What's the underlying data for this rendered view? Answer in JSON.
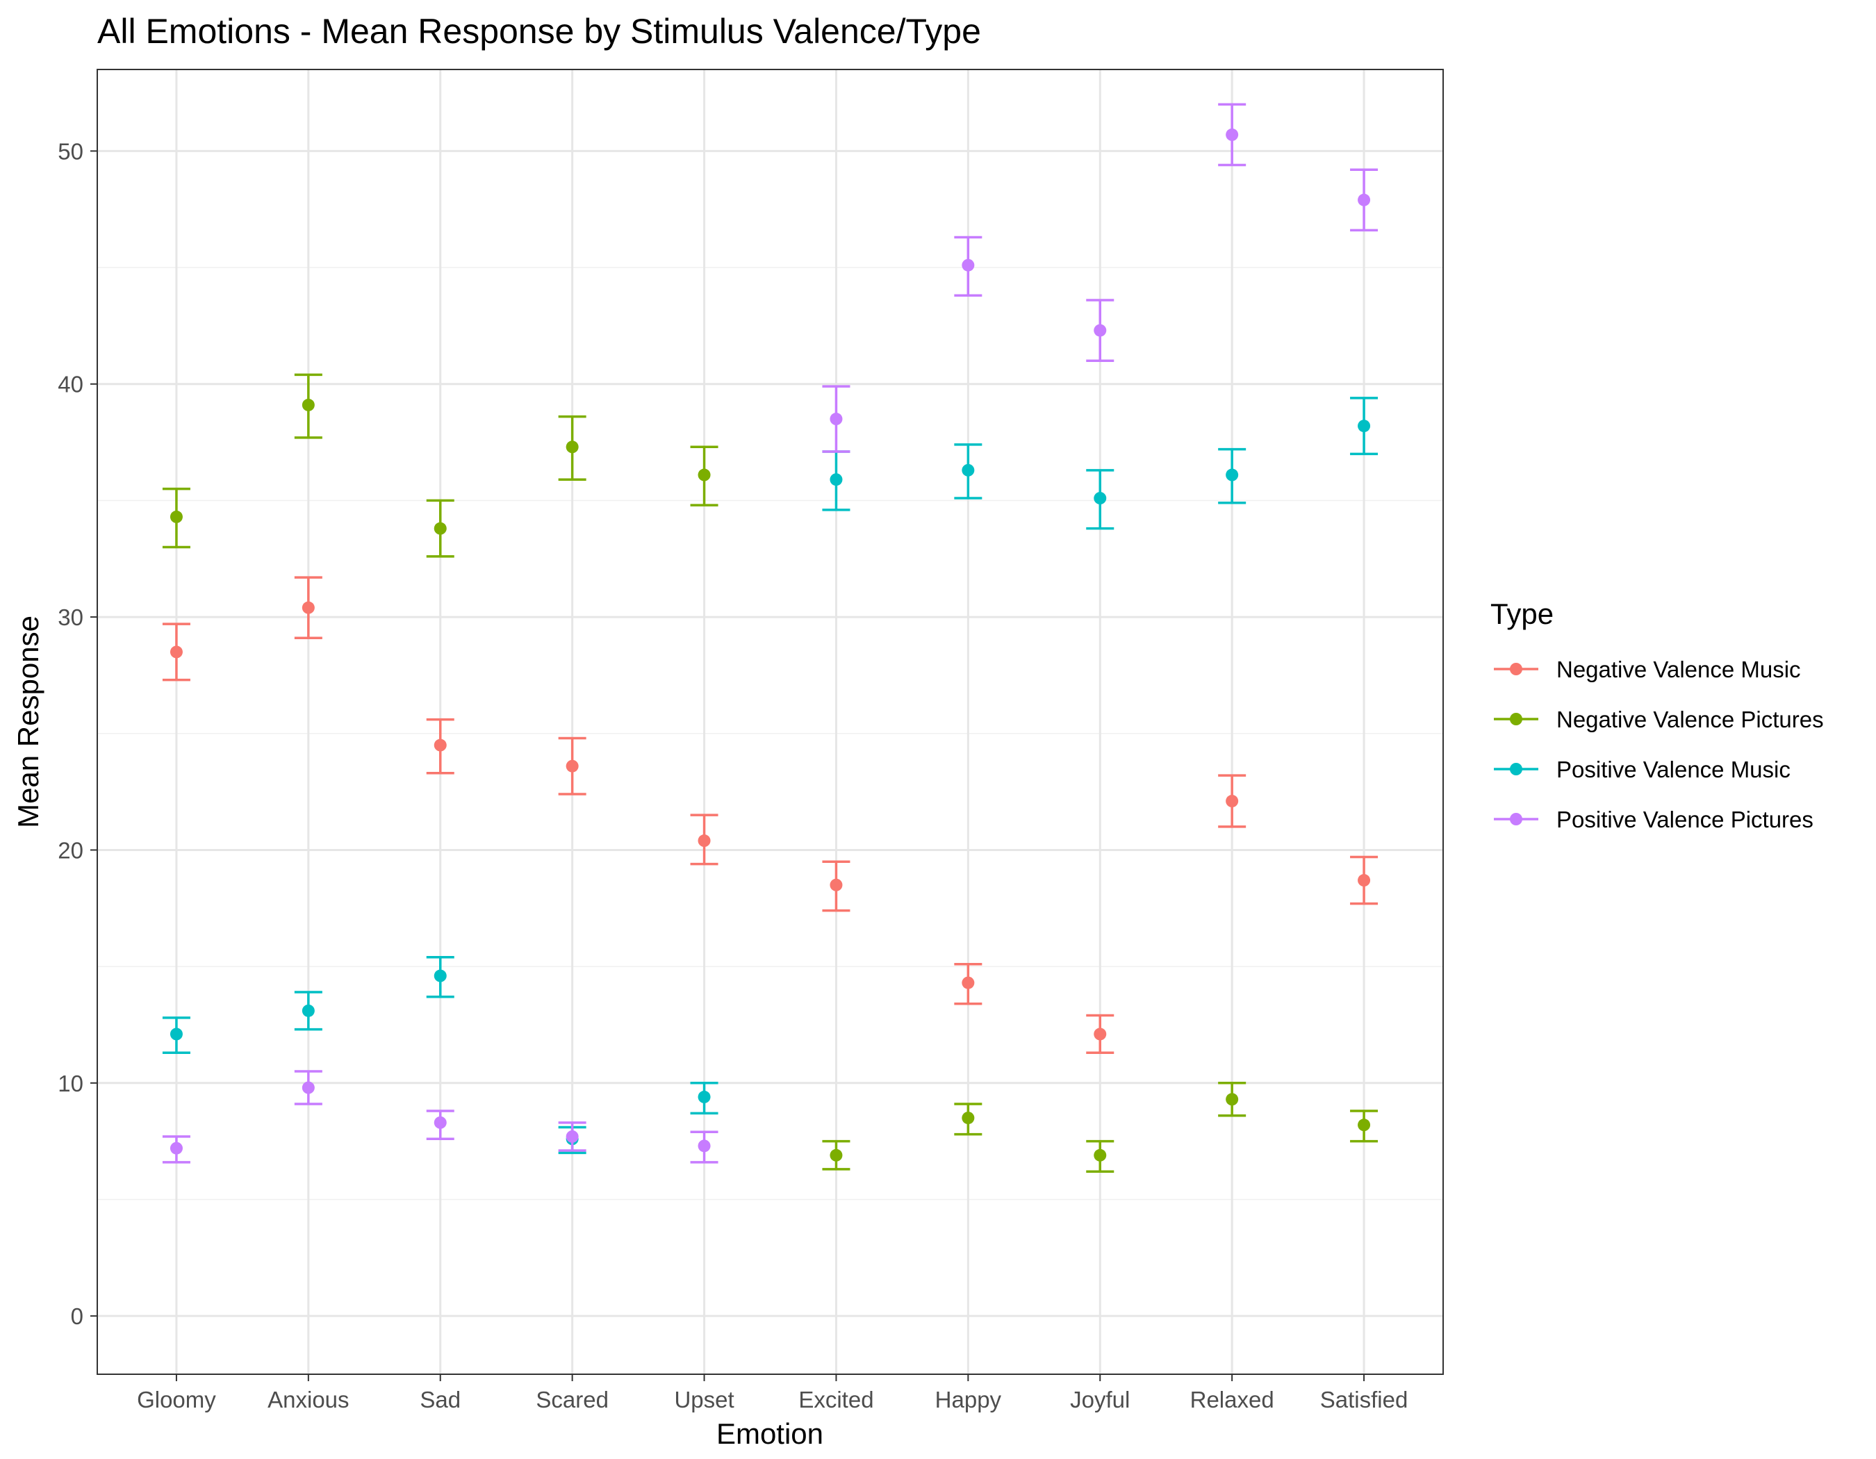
{
  "chart_data": {
    "type": "scatter",
    "title": "All Emotions - Mean Response by Stimulus Valence/Type",
    "xlabel": "Emotion",
    "ylabel": "Mean Response",
    "categories": [
      "Gloomy",
      "Anxious",
      "Sad",
      "Scared",
      "Upset",
      "Excited",
      "Happy",
      "Joyful",
      "Relaxed",
      "Satisfied"
    ],
    "ylim": [
      -2.5,
      53.5
    ],
    "yticks": [
      0,
      10,
      20,
      30,
      40,
      50
    ],
    "grid": true,
    "legend": {
      "title": "Type",
      "placement": "right"
    },
    "series": [
      {
        "name": "Negative Valence Music",
        "color": "#F8766D",
        "values": [
          28.5,
          30.4,
          24.5,
          23.6,
          20.4,
          18.5,
          14.3,
          12.1,
          22.1,
          18.7
        ],
        "error_low": [
          27.3,
          29.1,
          23.3,
          22.4,
          19.4,
          17.4,
          13.4,
          11.3,
          21.0,
          17.7
        ],
        "error_high": [
          29.7,
          31.7,
          25.6,
          24.8,
          21.5,
          19.5,
          15.1,
          12.9,
          23.2,
          19.7
        ]
      },
      {
        "name": "Negative Valence Pictures",
        "color": "#7CAE00",
        "values": [
          34.3,
          39.1,
          33.8,
          37.3,
          36.1,
          6.9,
          8.5,
          6.9,
          9.3,
          8.2
        ],
        "error_low": [
          33.0,
          37.7,
          32.6,
          35.9,
          34.8,
          6.3,
          7.8,
          6.2,
          8.6,
          7.5
        ],
        "error_high": [
          35.5,
          40.4,
          35.0,
          38.6,
          37.3,
          7.5,
          9.1,
          7.5,
          10.0,
          8.8
        ]
      },
      {
        "name": "Positive Valence Music",
        "color": "#00BFC4",
        "values": [
          12.1,
          13.1,
          14.6,
          7.6,
          9.4,
          35.9,
          36.3,
          35.1,
          36.1,
          38.2
        ],
        "error_low": [
          11.3,
          12.3,
          13.7,
          7.0,
          8.7,
          34.6,
          35.1,
          33.8,
          34.9,
          37.0
        ],
        "error_high": [
          12.8,
          13.9,
          15.4,
          8.1,
          10.0,
          37.1,
          37.4,
          36.3,
          37.2,
          39.4
        ]
      },
      {
        "name": "Positive Valence Pictures",
        "color": "#C77CFF",
        "values": [
          7.2,
          9.8,
          8.3,
          7.7,
          7.3,
          38.5,
          45.1,
          42.3,
          50.7,
          47.9
        ],
        "error_low": [
          6.6,
          9.1,
          7.6,
          7.1,
          6.6,
          37.1,
          43.8,
          41.0,
          49.4,
          46.6
        ],
        "error_high": [
          7.7,
          10.5,
          8.8,
          8.3,
          7.9,
          39.9,
          46.3,
          43.6,
          52.0,
          49.2
        ]
      }
    ]
  }
}
